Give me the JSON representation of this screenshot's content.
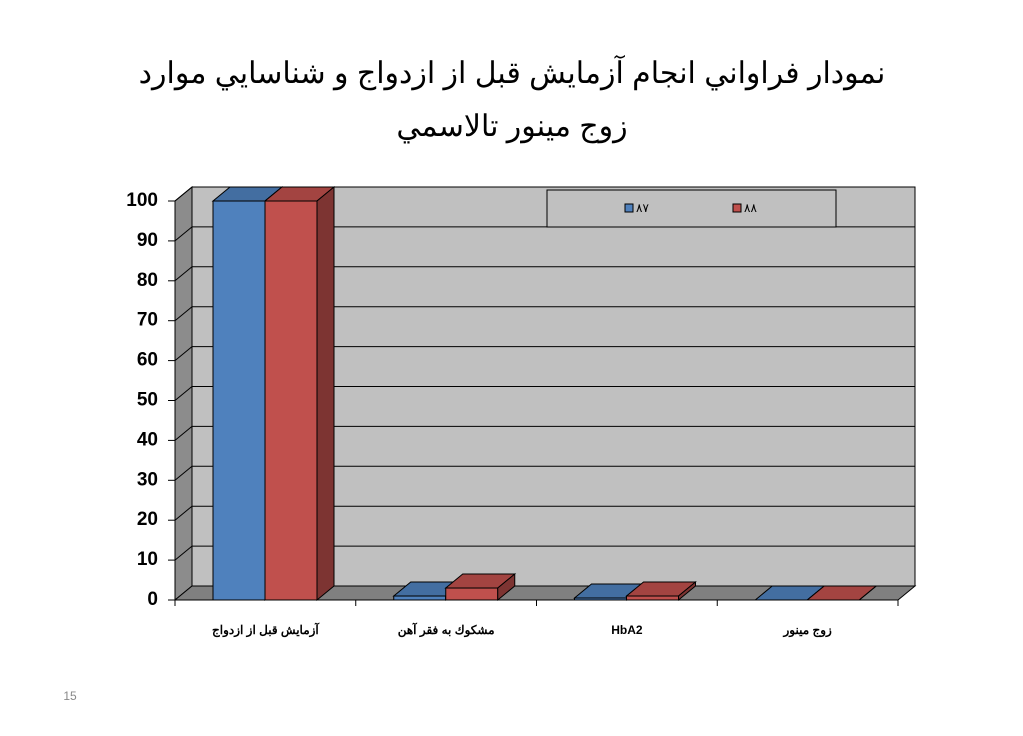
{
  "chart_data": {
    "type": "bar3d",
    "title": [
      "نمودار فراواني انجام آزمايش قبل از ازدواج و شناسايي موارد",
      "زوج مينور تالاسمي"
    ],
    "categories": [
      "آزمايش قبل از ازدواج",
      "مشكوك به فقر آهن",
      "HbA2",
      "زوج مينور"
    ],
    "series": [
      {
        "name": "٨٧",
        "color": "#4f81bd",
        "values": [
          100,
          1,
          0.5,
          0
        ]
      },
      {
        "name": "٨٨",
        "color": "#c0504d",
        "values": [
          100,
          3,
          1,
          0
        ]
      }
    ],
    "ylim": [
      0,
      100
    ],
    "yticks": [
      0,
      10,
      20,
      30,
      40,
      50,
      60,
      70,
      80,
      90,
      100
    ],
    "grid": true,
    "legend": "top"
  },
  "page_number": "15"
}
